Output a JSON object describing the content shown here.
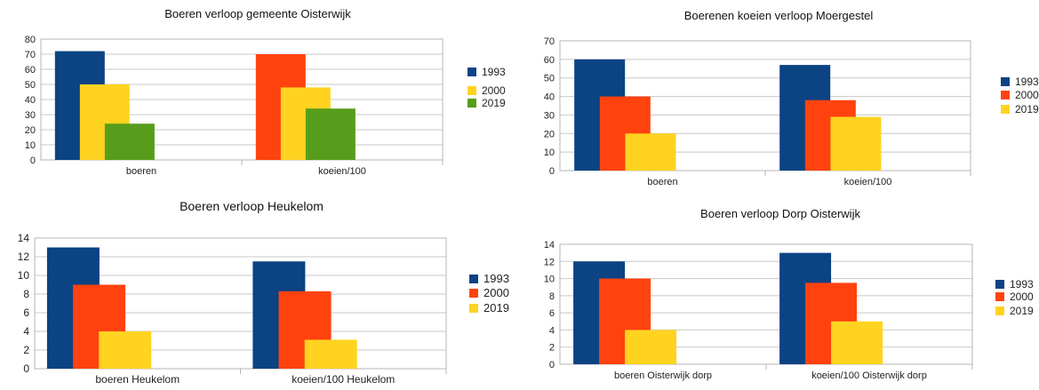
{
  "colors": {
    "navy": "#0b4383",
    "yellow": "#ffd320",
    "green": "#579d1c",
    "orange": "#ff420e"
  },
  "chart_data": [
    {
      "type": "bar",
      "title": "Boeren verloop gemeente Oisterwijk",
      "categories": [
        "boeren",
        "koeien/100"
      ],
      "series": [
        {
          "name": "1993",
          "values": [
            72,
            0
          ]
        },
        {
          "name": "2000",
          "values": [
            50,
            48
          ]
        },
        {
          "name": "2019",
          "values": [
            24,
            34
          ]
        }
      ],
      "bar_colors": [
        [
          "#0b4383",
          "#ff420e"
        ],
        [
          "#ffd320",
          "#ffd320"
        ],
        [
          "#579d1c",
          "#579d1c"
        ]
      ],
      "legend_colors": [
        "#0b4383",
        "#ffd320",
        "#579d1c"
      ],
      "combined_first": [
        72,
        70
      ],
      "yticks": [
        "0",
        "10",
        "20",
        "30",
        "40",
        "50",
        "60",
        "70",
        "80"
      ],
      "ylim": [
        0,
        80
      ],
      "grid": true,
      "legend_position": "right"
    },
    {
      "type": "bar",
      "title": "Boerenen koeien  verloop Moergestel",
      "categories": [
        "boeren",
        "koeien/100"
      ],
      "series": [
        {
          "name": "1993",
          "values": [
            60,
            57
          ]
        },
        {
          "name": "2000",
          "values": [
            40,
            38
          ]
        },
        {
          "name": "2019",
          "values": [
            20,
            29
          ]
        }
      ],
      "legend_colors": [
        "#0b4383",
        "#ff420e",
        "#ffd320"
      ],
      "yticks": [
        "0",
        "10",
        "20",
        "30",
        "40",
        "50",
        "60",
        "70"
      ],
      "ylim": [
        0,
        70
      ],
      "grid": true,
      "legend_position": "right"
    },
    {
      "type": "bar",
      "title": "Boeren verloop Heukelom",
      "categories": [
        "boeren Heukelom",
        "koeien/100 Heukelom"
      ],
      "series": [
        {
          "name": "1993",
          "values": [
            13,
            11.5
          ]
        },
        {
          "name": "2000",
          "values": [
            9,
            8.3
          ]
        },
        {
          "name": "2019",
          "values": [
            4,
            3.1
          ]
        }
      ],
      "legend_colors": [
        "#0b4383",
        "#ff420e",
        "#ffd320"
      ],
      "yticks": [
        "0",
        "2",
        "4",
        "6",
        "8",
        "10",
        "12",
        "14"
      ],
      "ylim": [
        0,
        14
      ],
      "grid": true,
      "legend_position": "right"
    },
    {
      "type": "bar",
      "title": "Boeren verloop  Dorp Oisterwijk",
      "categories": [
        "boeren  Oisterwijk dorp",
        "koeien/100 Oisterwijk dorp"
      ],
      "series": [
        {
          "name": "1993",
          "values": [
            12,
            13
          ]
        },
        {
          "name": "2000",
          "values": [
            10,
            9.5
          ]
        },
        {
          "name": "2019",
          "values": [
            4,
            5
          ]
        }
      ],
      "legend_colors": [
        "#0b4383",
        "#ff420e",
        "#ffd320"
      ],
      "yticks": [
        "0",
        "2",
        "4",
        "6",
        "8",
        "10",
        "12",
        "14"
      ],
      "ylim": [
        0,
        14
      ],
      "grid": true,
      "legend_position": "right"
    }
  ]
}
